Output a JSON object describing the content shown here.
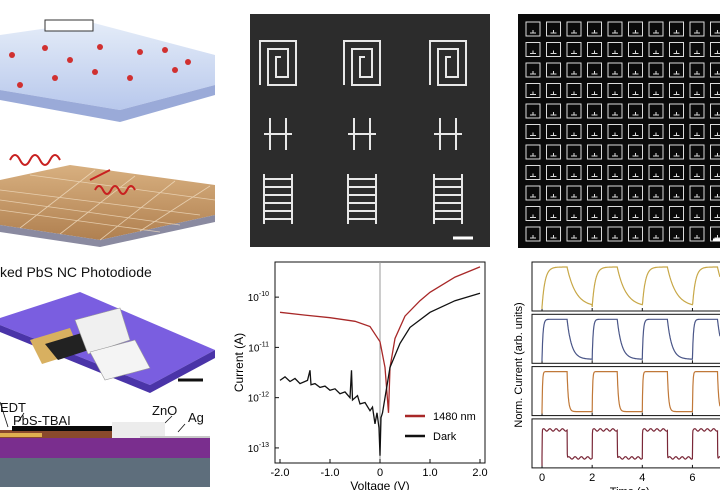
{
  "panels": {
    "photodiode_title": "ked PbS NC Photodiode",
    "layer_labels": {
      "edt": "EDT",
      "pbs_tbai": "PbS-TBAI",
      "zno": "ZnO",
      "ag": "Ag"
    },
    "layer_colors": {
      "ag": "#c8c8c8",
      "zno": "#ececec",
      "pbs_tbai": "#8a4a2c",
      "edt": "#0a0a0a",
      "gold": "#e0b050",
      "substrate_top": "#7a2e8e",
      "substrate_bottom": "#5e6e7c"
    }
  },
  "chart_data": [
    {
      "type": "line",
      "xlabel": "Voltage (V)",
      "ylabel": "Current (A)",
      "xlim": [
        -2.1,
        2.1
      ],
      "ylim": [
        1e-13,
        5e-10
      ],
      "yscale": "log",
      "x_ticks": [
        "-2.0",
        "-1.0",
        "0",
        "1.0",
        "2.0"
      ],
      "x_tick_values": [
        -2,
        -1,
        0,
        1,
        2
      ],
      "y_ticks": [
        {
          "base": "10",
          "exp": "-10",
          "value": 1e-10
        },
        {
          "base": "10",
          "exp": "-11",
          "value": 1e-11
        },
        {
          "base": "10",
          "exp": "-12",
          "value": 1e-12
        },
        {
          "base": "10",
          "exp": "-13",
          "value": 1e-13
        }
      ],
      "legend_position": "bottom-right",
      "series": [
        {
          "name": "1480 nm",
          "color": "#a82828",
          "points": [
            [
              -2,
              5e-11
            ],
            [
              -1.5,
              4.4e-11
            ],
            [
              -1,
              3.9e-11
            ],
            [
              -0.5,
              3.3e-11
            ],
            [
              -0.2,
              2.6e-11
            ],
            [
              0,
              1.3e-11
            ],
            [
              0.1,
              4e-12
            ],
            [
              0.17,
              5e-13
            ],
            [
              0.2,
              4e-12
            ],
            [
              0.3,
              1.5e-11
            ],
            [
              0.5,
              4.2e-11
            ],
            [
              0.8,
              8.5e-11
            ],
            [
              1,
              1.25e-10
            ],
            [
              1.5,
              2.5e-10
            ],
            [
              2,
              4e-10
            ]
          ]
        },
        {
          "name": "Dark",
          "color": "#111111",
          "points": [
            [
              -2,
              2.2e-12
            ],
            [
              -1.9,
              2.6e-12
            ],
            [
              -1.8,
              2.1e-12
            ],
            [
              -1.7,
              2.4e-12
            ],
            [
              -1.6,
              1.9e-12
            ],
            [
              -1.45,
              2.2e-12
            ],
            [
              -1.4,
              3.5e-12
            ],
            [
              -1.38,
              1.8e-12
            ],
            [
              -1.3,
              1.9e-12
            ],
            [
              -1.2,
              1.6e-12
            ],
            [
              -1.1,
              1.7e-12
            ],
            [
              -1,
              1.4e-12
            ],
            [
              -0.9,
              1.5e-12
            ],
            [
              -0.8,
              1.2e-12
            ],
            [
              -0.7,
              1.3e-12
            ],
            [
              -0.6,
              1e-12
            ],
            [
              -0.57,
              3.5e-12
            ],
            [
              -0.55,
              9e-13
            ],
            [
              -0.45,
              1.1e-12
            ],
            [
              -0.4,
              7.5e-13
            ],
            [
              -0.3,
              8e-13
            ],
            [
              -0.2,
              5.5e-13
            ],
            [
              -0.15,
              6.5e-13
            ],
            [
              -0.1,
              3e-13
            ],
            [
              -0.06,
              5e-13
            ],
            [
              -0.02,
              2.5e-13
            ],
            [
              0,
              7e-14
            ],
            [
              0.02,
              4e-13
            ],
            [
              0.05,
              5e-13
            ],
            [
              0.1,
              1e-12
            ],
            [
              0.2,
              4e-12
            ],
            [
              0.4,
              1.2e-11
            ],
            [
              0.6,
              2.5e-11
            ],
            [
              1,
              5e-11
            ],
            [
              1.5,
              8.5e-11
            ],
            [
              2,
              1.2e-10
            ]
          ]
        }
      ]
    },
    {
      "type": "line",
      "xlabel": "Time (s)",
      "ylabel": "Norm. Current (arb. units)",
      "xlim": [
        -0.4,
        7.1
      ],
      "x_ticks": [
        "0",
        "2",
        "4",
        "6"
      ],
      "x_tick_values": [
        0,
        2,
        4,
        6
      ],
      "on_duration_s": 1,
      "period_s": 2,
      "series": [
        {
          "color": "#c8a848",
          "rise_tau_s": 0.12,
          "fall_tau_s": 0.35
        },
        {
          "color": "#4a5688",
          "rise_tau_s": 0.04,
          "fall_tau_s": 0.18
        },
        {
          "color": "#c07838",
          "rise_tau_s": 0.02,
          "fall_tau_s": 0.05
        },
        {
          "color": "#7a2838",
          "rise_tau_s": 0.005,
          "fall_tau_s": 0.005
        }
      ]
    }
  ]
}
